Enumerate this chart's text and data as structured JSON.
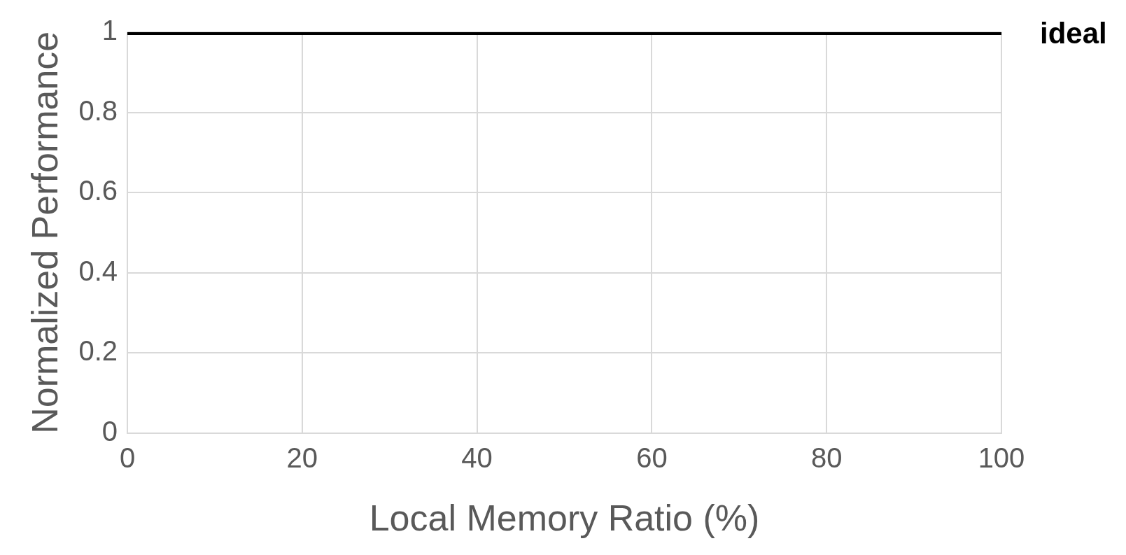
{
  "chart_data": {
    "type": "line",
    "xlabel": "Local Memory Ratio (%)",
    "ylabel": "Normalized Performance",
    "x": [
      0,
      100
    ],
    "series": [
      {
        "name": "ideal",
        "color": "#000000",
        "values": [
          1,
          1
        ]
      }
    ],
    "xlim": [
      0,
      100
    ],
    "xticks": [
      0,
      20,
      40,
      60,
      80,
      100
    ],
    "ylim": [
      0,
      1
    ],
    "yticks": [
      0,
      0.2,
      0.4,
      0.6,
      0.8,
      1
    ],
    "grid": true
  }
}
